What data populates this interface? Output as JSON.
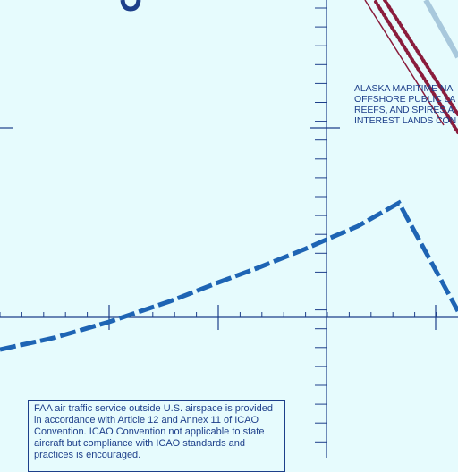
{
  "map": {
    "colors": {
      "background": "#e6fbfd",
      "grid": "#1d3f8a",
      "boundary": "#1e64b4",
      "restricted_dots": "#8a1c3c",
      "route": "#a8c8dc"
    },
    "land_label_lines": [
      "ALASKA MARITIME NA",
      "OFFSHORE PUBLIC LA",
      "REEFS, AND SPIRES A",
      "INTEREST LANDS CON"
    ],
    "notice_text": "FAA air traffic service outside U.S. airspace is provided in accordance with Article 12 and Annex 11 of ICAO Convention. ICAO Convention not applicable to state aircraft but compliance with ICAO standards and practices is encouraged."
  }
}
